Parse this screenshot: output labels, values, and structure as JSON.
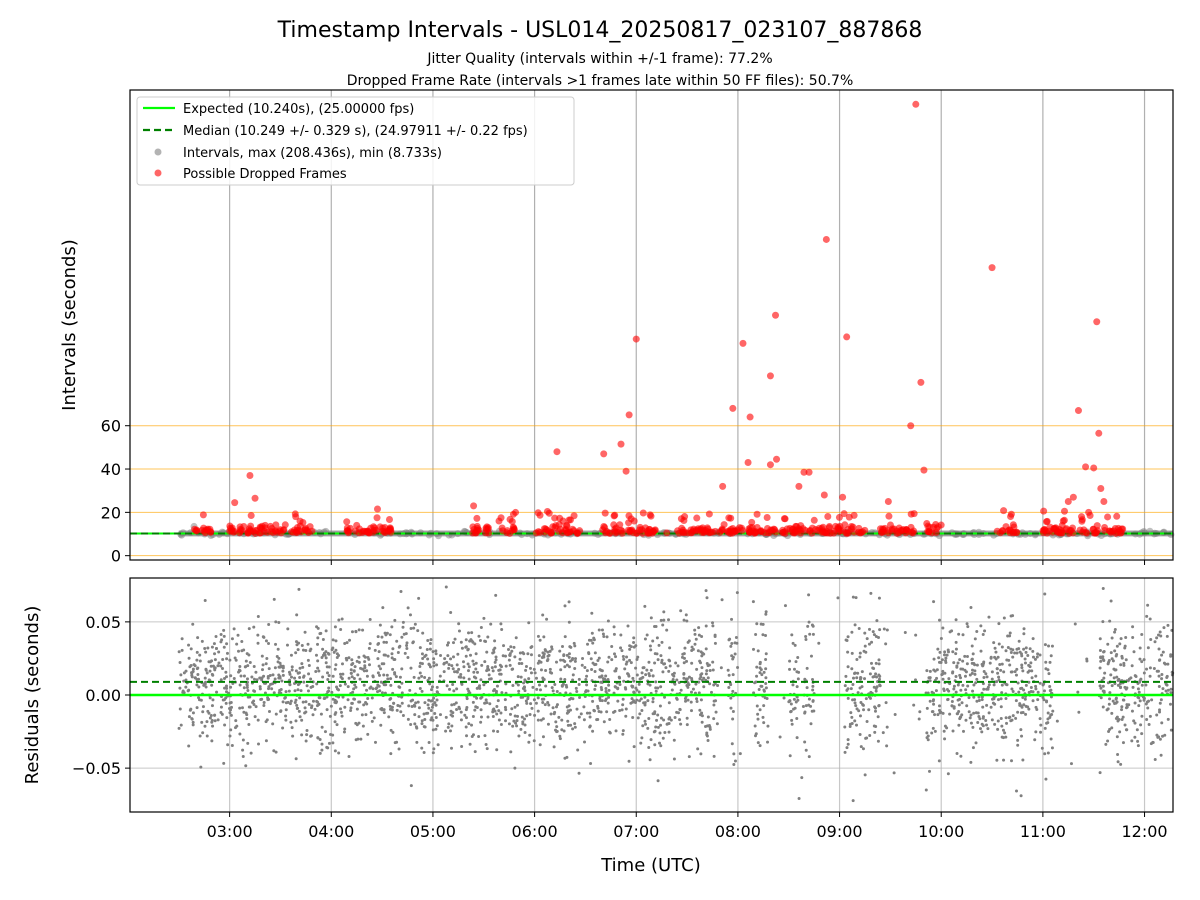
{
  "chart_data": {
    "type": "scatter",
    "title": "Timestamp Intervals - USL014_20250817_023107_887868",
    "subtitles": [
      "Jitter Quality (intervals within +/-1 frame): 77.2%",
      "Dropped Frame Rate (intervals >1 frames late within 50 FF files): 50.7%"
    ],
    "xlabel": "Time (UTC)",
    "x_ticks": [
      "03:00",
      "04:00",
      "05:00",
      "06:00",
      "07:00",
      "08:00",
      "09:00",
      "10:00",
      "11:00",
      "12:00"
    ],
    "x_range_hours": [
      2.02,
      12.28
    ],
    "top_panel": {
      "ylabel": "Intervals (seconds)",
      "y_ticks": [
        "0",
        "20",
        "40",
        "60"
      ],
      "ylim": [
        -2,
        215
      ],
      "orange_reference_lines": [
        0,
        20,
        40,
        60
      ],
      "expected_interval": 10.24,
      "median_interval": 10.249,
      "legend": {
        "position": "upper-left",
        "entries": [
          "Expected (10.240s), (25.00000 fps)",
          "Median (10.249 +/- 0.329 s), (24.97911 +/- 0.22 fps)",
          "Intervals, max (208.436s), min (8.733s)",
          "Possible Dropped Frames"
        ]
      },
      "dropped_frames": [
        [
          3.05,
          24.5
        ],
        [
          3.2,
          37
        ],
        [
          3.25,
          26.5
        ],
        [
          3.65,
          18
        ],
        [
          4.45,
          17.5
        ],
        [
          5.4,
          23
        ],
        [
          5.65,
          16
        ],
        [
          6.22,
          48
        ],
        [
          6.28,
          16
        ],
        [
          6.68,
          47
        ],
        [
          6.85,
          51.5
        ],
        [
          6.9,
          39
        ],
        [
          6.93,
          65
        ],
        [
          6.98,
          16
        ],
        [
          7.0,
          100
        ],
        [
          7.85,
          32
        ],
        [
          7.95,
          68
        ],
        [
          8.05,
          98
        ],
        [
          8.1,
          43
        ],
        [
          8.12,
          64
        ],
        [
          8.32,
          42
        ],
        [
          8.32,
          83
        ],
        [
          8.37,
          111
        ],
        [
          8.38,
          44.5
        ],
        [
          8.6,
          32
        ],
        [
          8.65,
          38.5
        ],
        [
          8.7,
          38.5
        ],
        [
          8.85,
          28
        ],
        [
          8.87,
          146
        ],
        [
          9.03,
          27
        ],
        [
          9.07,
          101
        ],
        [
          9.48,
          25
        ],
        [
          9.7,
          60
        ],
        [
          9.75,
          208.4
        ],
        [
          9.8,
          80
        ],
        [
          9.83,
          39.5
        ],
        [
          10.5,
          133
        ],
        [
          11.35,
          67
        ],
        [
          11.42,
          41
        ],
        [
          11.5,
          40.5
        ],
        [
          11.53,
          108
        ],
        [
          11.55,
          56.5
        ],
        [
          11.57,
          31
        ],
        [
          11.6,
          25
        ],
        [
          11.25,
          25
        ],
        [
          11.2,
          16
        ],
        [
          11.3,
          27
        ],
        [
          11.38,
          18
        ],
        [
          11.45,
          20
        ],
        [
          3.35,
          14
        ],
        [
          4.25,
          14
        ],
        [
          6.95,
          17
        ],
        [
          7.3,
          10.5
        ]
      ],
      "dense_dropped_segments_hours": [
        [
          2.65,
          2.82
        ],
        [
          3.0,
          3.55
        ],
        [
          3.6,
          3.82
        ],
        [
          4.15,
          4.6
        ],
        [
          5.35,
          5.55
        ],
        [
          5.65,
          5.82
        ],
        [
          6.0,
          6.45
        ],
        [
          6.65,
          7.2
        ],
        [
          7.4,
          7.8
        ],
        [
          7.8,
          8.05
        ],
        [
          8.1,
          8.5
        ],
        [
          8.5,
          8.9
        ],
        [
          8.9,
          9.25
        ],
        [
          9.4,
          9.6
        ],
        [
          9.6,
          9.75
        ],
        [
          9.85,
          10.0
        ],
        [
          10.55,
          10.75
        ],
        [
          11.0,
          11.55
        ],
        [
          11.6,
          11.8
        ]
      ],
      "normal_interval_span_hours": [
        2.5,
        12.28
      ]
    },
    "bottom_panel": {
      "ylabel": "Residuals (seconds)",
      "y_ticks": [
        "0.05",
        "0.00",
        "−0.05"
      ],
      "ylim": [
        -0.08,
        0.08
      ],
      "expected_residual": 0.0,
      "median_residual": 0.009,
      "residual_clusters_hours": [
        [
          2.5,
          3.0
        ],
        [
          3.0,
          3.7
        ],
        [
          3.7,
          4.5
        ],
        [
          4.5,
          5.2
        ],
        [
          5.2,
          5.9
        ],
        [
          5.9,
          6.7
        ],
        [
          6.7,
          7.25
        ],
        [
          7.25,
          7.8
        ],
        [
          7.9,
          8.0
        ],
        [
          8.15,
          8.3
        ],
        [
          8.5,
          8.6
        ],
        [
          8.65,
          8.75
        ],
        [
          9.05,
          9.4
        ],
        [
          9.85,
          10.35
        ],
        [
          10.35,
          10.8
        ],
        [
          10.8,
          11.1
        ],
        [
          11.55,
          12.28
        ]
      ]
    },
    "colors": {
      "expected": "#00ff00",
      "median": "#008000",
      "intervals": "#808080",
      "dropped": "#ff0000",
      "reference": "#ffa500",
      "grid": "#b0b0b0"
    }
  }
}
